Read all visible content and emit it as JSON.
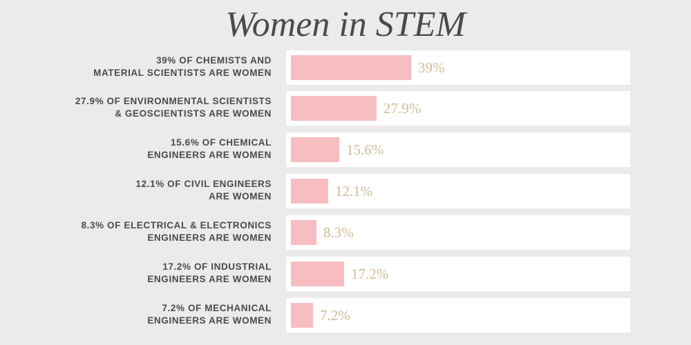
{
  "chart_data": {
    "type": "bar",
    "orientation": "horizontal",
    "title": "Women in STEM",
    "categories": [
      [
        "39% OF CHEMISTS AND",
        "MATERIAL SCIENTISTS ARE WOMEN"
      ],
      [
        "27.9% OF ENVIRONMENTAL SCIENTISTS",
        "& GEOSCIENTISTS ARE WOMEN"
      ],
      [
        "15.6% OF CHEMICAL",
        "ENGINEERS ARE WOMEN"
      ],
      [
        "12.1% OF CIVIL ENGINEERS",
        "ARE WOMEN"
      ],
      [
        "8.3% OF ELECTRICAL & ELECTRONICS",
        "ENGINEERS ARE WOMEN"
      ],
      [
        "17.2% OF INDUSTRIAL",
        "ENGINEERS ARE WOMEN"
      ],
      [
        "7.2% OF MECHANICAL",
        "ENGINEERS ARE WOMEN"
      ]
    ],
    "values": [
      39,
      27.9,
      15.6,
      12.1,
      8.3,
      17.2,
      7.2
    ],
    "value_labels": [
      "39%",
      "27.9%",
      "15.6%",
      "12.1%",
      "8.3%",
      "17.2%",
      "7.2%"
    ],
    "unit": "%",
    "xlim": [
      0,
      100
    ],
    "grid": false,
    "legend": "none",
    "colors": {
      "background": "#ebebeb",
      "panel": "#ffffff",
      "bar": "#f7bdc0",
      "value_text": "#cfbc95",
      "label_text": "#4a4a4a",
      "title_text": "#4a4a4a"
    }
  }
}
